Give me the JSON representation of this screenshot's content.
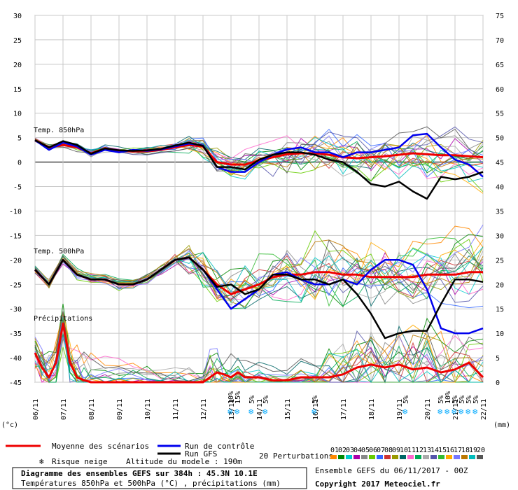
{
  "chart_data": {
    "type": "line",
    "title": "Diagramme des ensembles GEFS sur 384h : 45.3N 10.1E",
    "subtitle": "Températures 850hPa et 500hPa (°C) , précipitations (mm)",
    "left_unit": "(°c)",
    "right_unit": "(mm)",
    "y_left": {
      "min": -45,
      "max": 30,
      "ticks": [
        30,
        25,
        20,
        15,
        10,
        5,
        0,
        -5,
        -10,
        -15,
        -20,
        -25,
        -30,
        -35,
        -40,
        -45
      ]
    },
    "y_right": {
      "min": 0,
      "max": 75,
      "ticks": [
        75,
        70,
        65,
        60,
        55,
        50,
        45,
        40,
        35,
        30,
        25,
        20,
        15,
        10,
        5,
        0
      ]
    },
    "x_dates": [
      "06/11",
      "07/11",
      "08/11",
      "09/11",
      "10/11",
      "11/11",
      "12/11",
      "13/11",
      "14/11",
      "15/11",
      "16/11",
      "17/11",
      "18/11",
      "19/11",
      "20/11",
      "21/11",
      "22/11"
    ],
    "panel_labels": {
      "t850": "Temp. 850hPa",
      "t500": "Temp. 500hPa",
      "precip": "Précipitations"
    },
    "snow_risk": [
      {
        "day": 7.0,
        "label": "10%"
      },
      {
        "day": 7.25,
        "label": "15%"
      },
      {
        "day": 7.75,
        "label": "5%"
      },
      {
        "day": 8.25,
        "label": "5%"
      },
      {
        "day": 10.0,
        "label": "5%"
      },
      {
        "day": 13.25,
        "label": "5%"
      },
      {
        "day": 14.5,
        "label": "5%"
      },
      {
        "day": 14.75,
        "label": "10%"
      },
      {
        "day": 15.0,
        "label": "5%"
      },
      {
        "day": 15.25,
        "label": "5%"
      },
      {
        "day": 15.5,
        "label": "5%"
      },
      {
        "day": 15.75,
        "label": "5%"
      }
    ],
    "series": [
      {
        "name": "Moyenne des scénarios",
        "panel": "t850",
        "color": "#ee0000",
        "x": [
          0,
          0.5,
          1,
          1.5,
          2,
          2.5,
          3,
          3.5,
          4,
          4.5,
          5,
          5.5,
          6,
          6.5,
          7,
          7.5,
          8,
          8.5,
          9,
          9.5,
          10,
          10.5,
          11,
          11.5,
          12,
          12.5,
          13,
          13.5,
          14,
          14.5,
          15,
          15.5,
          16
        ],
        "y": [
          4.5,
          3,
          3.5,
          3,
          1.8,
          2.8,
          2.3,
          2.2,
          2.2,
          2.5,
          3,
          3.5,
          3.2,
          0,
          -0.5,
          -0.5,
          0.3,
          1,
          1.6,
          1.8,
          1.8,
          1.5,
          1,
          0.8,
          1,
          1.2,
          1.5,
          1.8,
          1.6,
          1.4,
          1.4,
          1.2,
          1
        ]
      },
      {
        "name": "Run de contrôle",
        "panel": "t850",
        "color": "#0000ee",
        "x": [
          0,
          0.5,
          1,
          1.5,
          2,
          2.5,
          3,
          3.5,
          4,
          4.5,
          5,
          5.5,
          6,
          6.5,
          7,
          7.5,
          8,
          8.5,
          9,
          9.5,
          10,
          10.5,
          11,
          11.5,
          12,
          12.5,
          13,
          13.5,
          14,
          14.5,
          15,
          15.5,
          16
        ],
        "y": [
          4.5,
          2.5,
          4,
          3.2,
          1.5,
          2.5,
          2,
          2.5,
          2.3,
          2.6,
          3.2,
          3.8,
          3.4,
          -1,
          -2,
          -2,
          0,
          1.5,
          2.6,
          3,
          2,
          2,
          1,
          2,
          2,
          2.5,
          3,
          5.5,
          5.8,
          3,
          0.5,
          -0.5,
          -3
        ]
      },
      {
        "name": "Run GFS",
        "panel": "t850",
        "color": "#000000",
        "x": [
          0,
          0.5,
          1,
          1.5,
          2,
          2.5,
          3,
          3.5,
          4,
          4.5,
          5,
          5.5,
          6,
          6.5,
          7,
          7.5,
          8,
          8.5,
          9,
          9.5,
          10,
          10.5,
          11,
          11.5,
          12,
          12.5,
          13,
          13.5,
          14,
          14.5,
          15,
          15.5,
          16
        ],
        "y": [
          4.5,
          3,
          4.3,
          3.5,
          1.7,
          2.8,
          2.4,
          2.3,
          2.4,
          2.7,
          3.4,
          4,
          3.3,
          -1,
          -1,
          -1.5,
          0.5,
          1.5,
          2,
          2,
          1.5,
          0.5,
          0,
          -2,
          -4.5,
          -5,
          -4,
          -6,
          -7.5,
          -3,
          -3.5,
          -3,
          -2
        ]
      },
      {
        "name": "Moyenne des scénarios",
        "panel": "t500",
        "color": "#ee0000",
        "x": [
          0,
          0.5,
          1,
          1.5,
          2,
          2.5,
          3,
          3.5,
          4,
          4.5,
          5,
          5.5,
          6,
          6.5,
          7,
          7.5,
          8,
          8.5,
          9,
          9.5,
          10,
          10.5,
          11,
          11.5,
          12,
          12.5,
          13,
          13.5,
          14,
          14.5,
          15,
          15.5,
          16
        ],
        "y": [
          -22,
          -25,
          -20,
          -23,
          -24,
          -24,
          -25,
          -25,
          -24,
          -22,
          -20,
          -19.5,
          -22,
          -25,
          -27,
          -26,
          -25,
          -23.5,
          -23,
          -23,
          -22.5,
          -22.5,
          -23,
          -23,
          -23.5,
          -23.5,
          -23.5,
          -23.5,
          -23,
          -23,
          -23,
          -22.5,
          -22.5
        ]
      },
      {
        "name": "Run de contrôle",
        "panel": "t500",
        "color": "#0000ee",
        "x": [
          0,
          0.5,
          1,
          1.5,
          2,
          2.5,
          3,
          3.5,
          4,
          4.5,
          5,
          5.5,
          6,
          6.5,
          7,
          7.5,
          8,
          8.5,
          9,
          9.5,
          10,
          10.5,
          11,
          11.5,
          12,
          12.5,
          13,
          13.5,
          14,
          14.5,
          15,
          15.5,
          16
        ],
        "y": [
          -22,
          -25,
          -20,
          -23,
          -24,
          -24,
          -25,
          -25,
          -24,
          -22,
          -20,
          -19.5,
          -22,
          -26,
          -30,
          -28,
          -26,
          -23,
          -22.5,
          -24,
          -25,
          -25,
          -24,
          -25,
          -22,
          -20,
          -20,
          -21,
          -26,
          -34,
          -35,
          -35,
          -34
        ]
      },
      {
        "name": "Run GFS",
        "panel": "t500",
        "color": "#000000",
        "x": [
          0,
          0.5,
          1,
          1.5,
          2,
          2.5,
          3,
          3.5,
          4,
          4.5,
          5,
          5.5,
          6,
          6.5,
          7,
          7.5,
          8,
          8.5,
          9,
          9.5,
          10,
          10.5,
          11,
          11.5,
          12,
          12.5,
          13,
          13.5,
          14,
          14.5,
          15,
          15.5,
          16
        ],
        "y": [
          -22,
          -25,
          -20,
          -23,
          -24,
          -24,
          -25,
          -25,
          -24,
          -22,
          -20,
          -19.5,
          -22,
          -25.5,
          -25,
          -27,
          -26,
          -23,
          -23,
          -24,
          -24,
          -25,
          -24,
          -27,
          -31,
          -36,
          -35,
          -34.5,
          -34.5,
          -29,
          -24,
          -24,
          -24.5
        ]
      },
      {
        "name": "Moyenne des scénarios",
        "panel": "precip",
        "color": "#ee0000",
        "x": [
          0,
          0.25,
          0.5,
          0.75,
          1,
          1.25,
          1.5,
          1.75,
          2,
          2.5,
          3,
          3.5,
          4,
          4.5,
          5,
          5.5,
          6,
          6.25,
          6.5,
          6.75,
          7,
          7.25,
          7.5,
          8,
          8.5,
          9,
          9.5,
          10,
          10.5,
          11,
          11.5,
          12,
          12.5,
          13,
          13.5,
          14,
          14.5,
          15,
          15.5,
          16
        ],
        "y": [
          3,
          1.5,
          0.5,
          2,
          6,
          2,
          0.5,
          0.2,
          0,
          0,
          0,
          0,
          0,
          0,
          0,
          0,
          0,
          0.5,
          1,
          0.8,
          0.5,
          1,
          0.5,
          0.5,
          0.2,
          0.2,
          0.5,
          0.5,
          0.5,
          0.8,
          1.5,
          1.8,
          1.5,
          1.8,
          1.3,
          1.5,
          1,
          1.3,
          2,
          0.5
        ]
      }
    ]
  }
}
